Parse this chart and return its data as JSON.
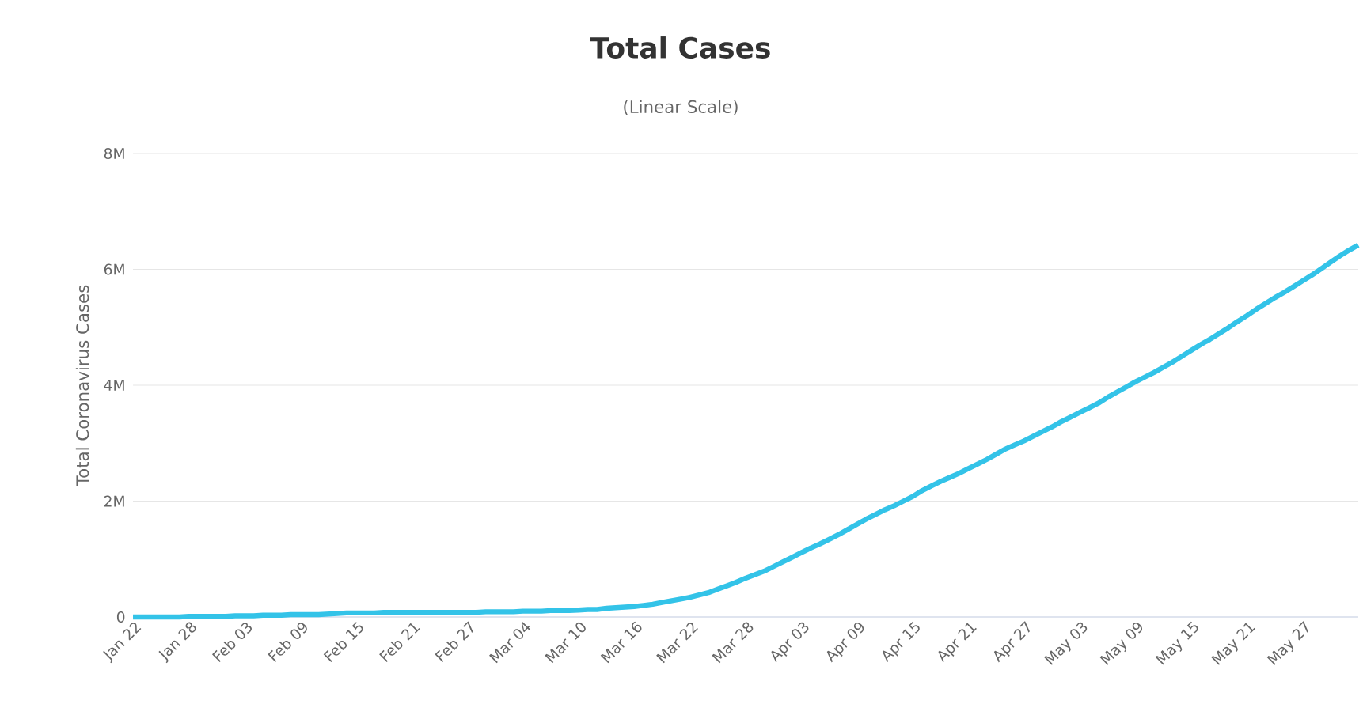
{
  "chart_data": {
    "type": "line",
    "title": "Total Cases",
    "subtitle": "(Linear Scale)",
    "ylabel": "Total Coronavirus Cases",
    "categories": [
      "Jan 22",
      null,
      null,
      null,
      null,
      null,
      "Jan 28",
      null,
      null,
      null,
      null,
      null,
      "Feb 03",
      null,
      null,
      null,
      null,
      null,
      "Feb 09",
      null,
      null,
      null,
      null,
      null,
      "Feb 15",
      null,
      null,
      null,
      null,
      null,
      "Feb 21",
      null,
      null,
      null,
      null,
      null,
      "Feb 27",
      null,
      null,
      null,
      null,
      null,
      "Mar 04",
      null,
      null,
      null,
      null,
      null,
      "Mar 10",
      null,
      null,
      null,
      null,
      null,
      "Mar 16",
      null,
      null,
      null,
      null,
      null,
      "Mar 22",
      null,
      null,
      null,
      null,
      null,
      "Mar 28",
      null,
      null,
      null,
      null,
      null,
      "Apr 03",
      null,
      null,
      null,
      null,
      null,
      "Apr 09",
      null,
      null,
      null,
      null,
      null,
      "Apr 15",
      null,
      null,
      null,
      null,
      null,
      "Apr 21",
      null,
      null,
      null,
      null,
      null,
      "Apr 27",
      null,
      null,
      null,
      null,
      null,
      "May 03",
      null,
      null,
      null,
      null,
      null,
      "May 09",
      null,
      null,
      null,
      null,
      null,
      "May 15",
      null,
      null,
      null,
      null,
      null,
      "May 21",
      null,
      null,
      null,
      null,
      null,
      "May 27",
      null,
      null,
      null,
      null,
      null,
      null
    ],
    "series": [
      {
        "color": "#33c3e8",
        "values": [
          0,
          0,
          0,
          0,
          0,
          0,
          10000,
          10000,
          10000,
          10000,
          10000,
          20000,
          20000,
          20000,
          30000,
          30000,
          30000,
          40000,
          40000,
          40000,
          40000,
          50000,
          60000,
          70000,
          70000,
          70000,
          70000,
          80000,
          80000,
          80000,
          80000,
          80000,
          80000,
          80000,
          80000,
          80000,
          80000,
          80000,
          90000,
          90000,
          90000,
          90000,
          100000,
          100000,
          100000,
          110000,
          110000,
          110000,
          120000,
          130000,
          130000,
          150000,
          160000,
          170000,
          180000,
          200000,
          220000,
          250000,
          280000,
          310000,
          340000,
          380000,
          420000,
          480000,
          540000,
          600000,
          670000,
          730000,
          790000,
          870000,
          950000,
          1030000,
          1110000,
          1190000,
          1260000,
          1340000,
          1420000,
          1510000,
          1600000,
          1690000,
          1770000,
          1850000,
          1920000,
          2000000,
          2080000,
          2180000,
          2260000,
          2340000,
          2410000,
          2480000,
          2560000,
          2640000,
          2720000,
          2810000,
          2900000,
          2970000,
          3040000,
          3120000,
          3200000,
          3280000,
          3370000,
          3450000,
          3530000,
          3610000,
          3690000,
          3790000,
          3880000,
          3970000,
          4060000,
          4140000,
          4220000,
          4310000,
          4400000,
          4500000,
          4600000,
          4700000,
          4790000,
          4890000,
          4990000,
          5100000,
          5200000,
          5310000,
          5410000,
          5510000,
          5600000,
          5700000,
          5800000,
          5900000,
          6010000,
          6120000,
          6230000,
          6330000,
          6420000
        ]
      }
    ],
    "ylim": [
      0,
      8000000
    ],
    "yticks": [
      0,
      {
        "value": 2000000,
        "label": "2M"
      },
      {
        "value": 4000000,
        "label": "4M"
      },
      {
        "value": 6000000,
        "label": "6M"
      },
      {
        "value": 8000000,
        "label": "8M"
      }
    ],
    "grid": "y",
    "legend": false,
    "marker": "none",
    "line_style": "solid"
  }
}
